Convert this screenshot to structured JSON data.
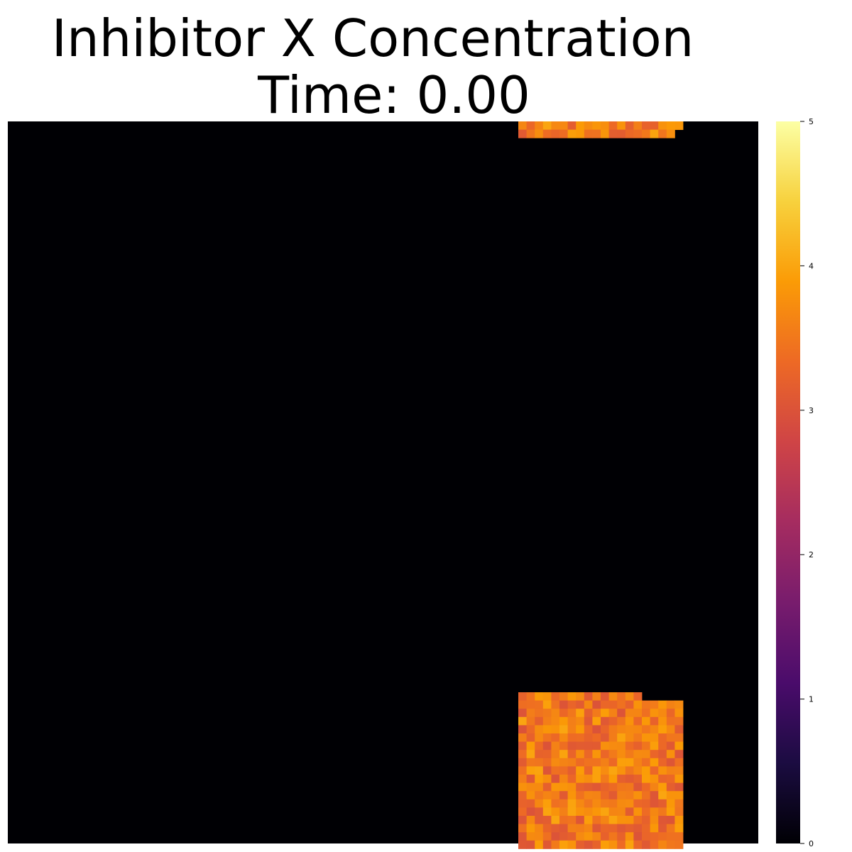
{
  "chart_data": {
    "type": "heatmap",
    "title": "Inhibitor X Concentration",
    "subtitle": "Time: 0.00",
    "colormap": "inferno",
    "colorbar": {
      "min": 0,
      "max": 5,
      "ticks": [
        0,
        1,
        2,
        3,
        4,
        5
      ]
    },
    "background_value": 0,
    "grid": false,
    "legend": "right",
    "regions": [
      {
        "name": "top patch",
        "value_range": [
          3.0,
          4.0
        ],
        "partial_row_ragged": true
      },
      {
        "name": "bottom patch",
        "value_range": [
          3.0,
          4.0
        ]
      }
    ]
  },
  "colors": {
    "background": "#000004",
    "inferno_stops": [
      "#000004",
      "#1b0c41",
      "#4a0c6b",
      "#781c6d",
      "#a52c60",
      "#cf4446",
      "#ed6925",
      "#fb9b06",
      "#f7d13d",
      "#fcffa4"
    ]
  }
}
